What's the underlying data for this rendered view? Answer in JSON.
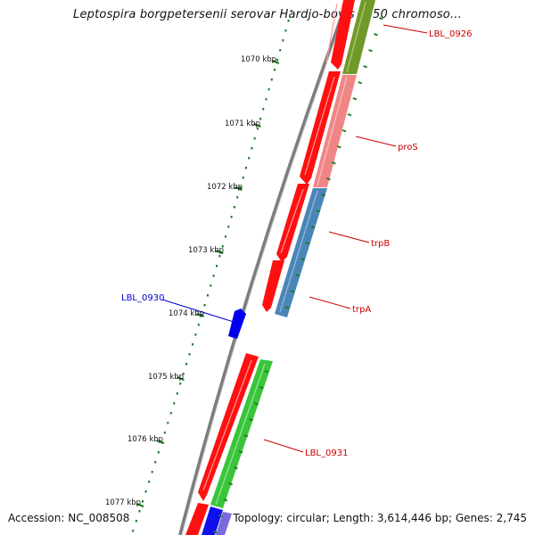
{
  "title": "Leptospira borgpetersenii serovar Hardjo-bovis L550 chromoso...",
  "footer": {
    "accession": "Accession: NC_008508",
    "summary": "Topology: circular; Length: 3,614,446 bp; Genes: 2,745"
  },
  "ticks": [
    "1070 kbp",
    "1071 kbp",
    "1072 kbp",
    "1073 kbp",
    "1074 kbp",
    "1075 kbp",
    "1076 kbp",
    "1077 kbp"
  ],
  "gene_labels": [
    {
      "text": "LBL_0926",
      "color": "#cc0000"
    },
    {
      "text": "proS",
      "color": "#cc0000"
    },
    {
      "text": "trpB",
      "color": "#cc0000"
    },
    {
      "text": "trpA",
      "color": "#cc0000"
    },
    {
      "text": "LBL_0930",
      "color": "#0000cc"
    },
    {
      "text": "LBL_0931",
      "color": "#cc0000"
    }
  ],
  "colors": {
    "backbone": "#808080",
    "cds": "#ff0000",
    "tick": "#1e7b1e",
    "gene_green": "#3ac43a",
    "gene_olive": "#6f9a2a",
    "gene_pink": "#f08080",
    "gene_blue": "#4682b4",
    "gene_darkblue": "#0000ee",
    "gene_purple": "#6a5acd"
  }
}
